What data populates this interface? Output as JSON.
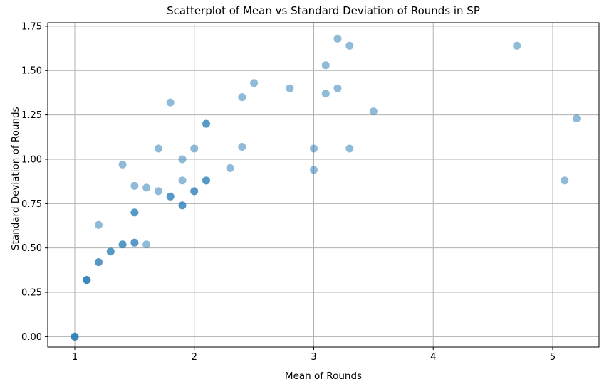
{
  "chart_data": {
    "type": "scatter",
    "title": "Scatterplot of Mean vs Standard Deviation of Rounds in SP",
    "xlabel": "Mean of Rounds",
    "ylabel": "Standard Deviation of Rounds",
    "x_tick_labels": [
      "1",
      "2",
      "3",
      "4",
      "5"
    ],
    "x_tick_values": [
      1,
      2,
      3,
      4,
      5
    ],
    "y_tick_labels": [
      "0.00",
      "0.25",
      "0.50",
      "0.75",
      "1.00",
      "1.25",
      "1.50",
      "1.75"
    ],
    "y_tick_values": [
      0,
      0.25,
      0.5,
      0.75,
      1.0,
      1.25,
      1.5,
      1.75
    ],
    "xlim": [
      0.7735,
      5.3875
    ],
    "ylim": [
      -0.0585,
      1.7695
    ],
    "grid": true,
    "legend_position": "none",
    "style": {
      "marker_color": "#1f77b4",
      "marker_opacity": 0.5,
      "marker_radius": 5.5,
      "grid_color": "#b0b0b0",
      "spine_color": "#000000",
      "tick_text_color": "#000000"
    },
    "points": [
      {
        "x": 1.0,
        "y": 0.0,
        "n": 3
      },
      {
        "x": 1.1,
        "y": 0.32,
        "n": 3
      },
      {
        "x": 1.2,
        "y": 0.42,
        "n": 2
      },
      {
        "x": 1.2,
        "y": 0.63,
        "n": 1
      },
      {
        "x": 1.3,
        "y": 0.48,
        "n": 2
      },
      {
        "x": 1.4,
        "y": 0.52,
        "n": 2
      },
      {
        "x": 1.4,
        "y": 0.97,
        "n": 1
      },
      {
        "x": 1.5,
        "y": 0.53,
        "n": 2
      },
      {
        "x": 1.5,
        "y": 0.7,
        "n": 2
      },
      {
        "x": 1.5,
        "y": 0.85,
        "n": 1
      },
      {
        "x": 1.6,
        "y": 0.52,
        "n": 1
      },
      {
        "x": 1.6,
        "y": 0.84,
        "n": 1
      },
      {
        "x": 1.7,
        "y": 0.82,
        "n": 1
      },
      {
        "x": 1.7,
        "y": 1.06,
        "n": 1
      },
      {
        "x": 1.8,
        "y": 0.79,
        "n": 2
      },
      {
        "x": 1.8,
        "y": 1.32,
        "n": 1
      },
      {
        "x": 1.9,
        "y": 0.74,
        "n": 2
      },
      {
        "x": 1.9,
        "y": 0.88,
        "n": 1
      },
      {
        "x": 1.9,
        "y": 1.0,
        "n": 1
      },
      {
        "x": 2.0,
        "y": 0.82,
        "n": 2
      },
      {
        "x": 2.0,
        "y": 1.06,
        "n": 1
      },
      {
        "x": 2.1,
        "y": 0.88,
        "n": 2
      },
      {
        "x": 2.1,
        "y": 1.2,
        "n": 2
      },
      {
        "x": 2.3,
        "y": 0.95,
        "n": 1
      },
      {
        "x": 2.4,
        "y": 1.07,
        "n": 1
      },
      {
        "x": 2.4,
        "y": 1.35,
        "n": 1
      },
      {
        "x": 2.5,
        "y": 1.43,
        "n": 1
      },
      {
        "x": 2.8,
        "y": 1.4,
        "n": 1
      },
      {
        "x": 3.0,
        "y": 0.94,
        "n": 1
      },
      {
        "x": 3.0,
        "y": 1.06,
        "n": 1
      },
      {
        "x": 3.1,
        "y": 1.37,
        "n": 1
      },
      {
        "x": 3.1,
        "y": 1.53,
        "n": 1
      },
      {
        "x": 3.2,
        "y": 1.4,
        "n": 1
      },
      {
        "x": 3.2,
        "y": 1.68,
        "n": 1
      },
      {
        "x": 3.3,
        "y": 1.06,
        "n": 1
      },
      {
        "x": 3.3,
        "y": 1.64,
        "n": 1
      },
      {
        "x": 3.5,
        "y": 1.27,
        "n": 1
      },
      {
        "x": 4.7,
        "y": 1.64,
        "n": 1
      },
      {
        "x": 5.1,
        "y": 0.88,
        "n": 1
      },
      {
        "x": 5.2,
        "y": 1.23,
        "n": 1
      }
    ]
  }
}
